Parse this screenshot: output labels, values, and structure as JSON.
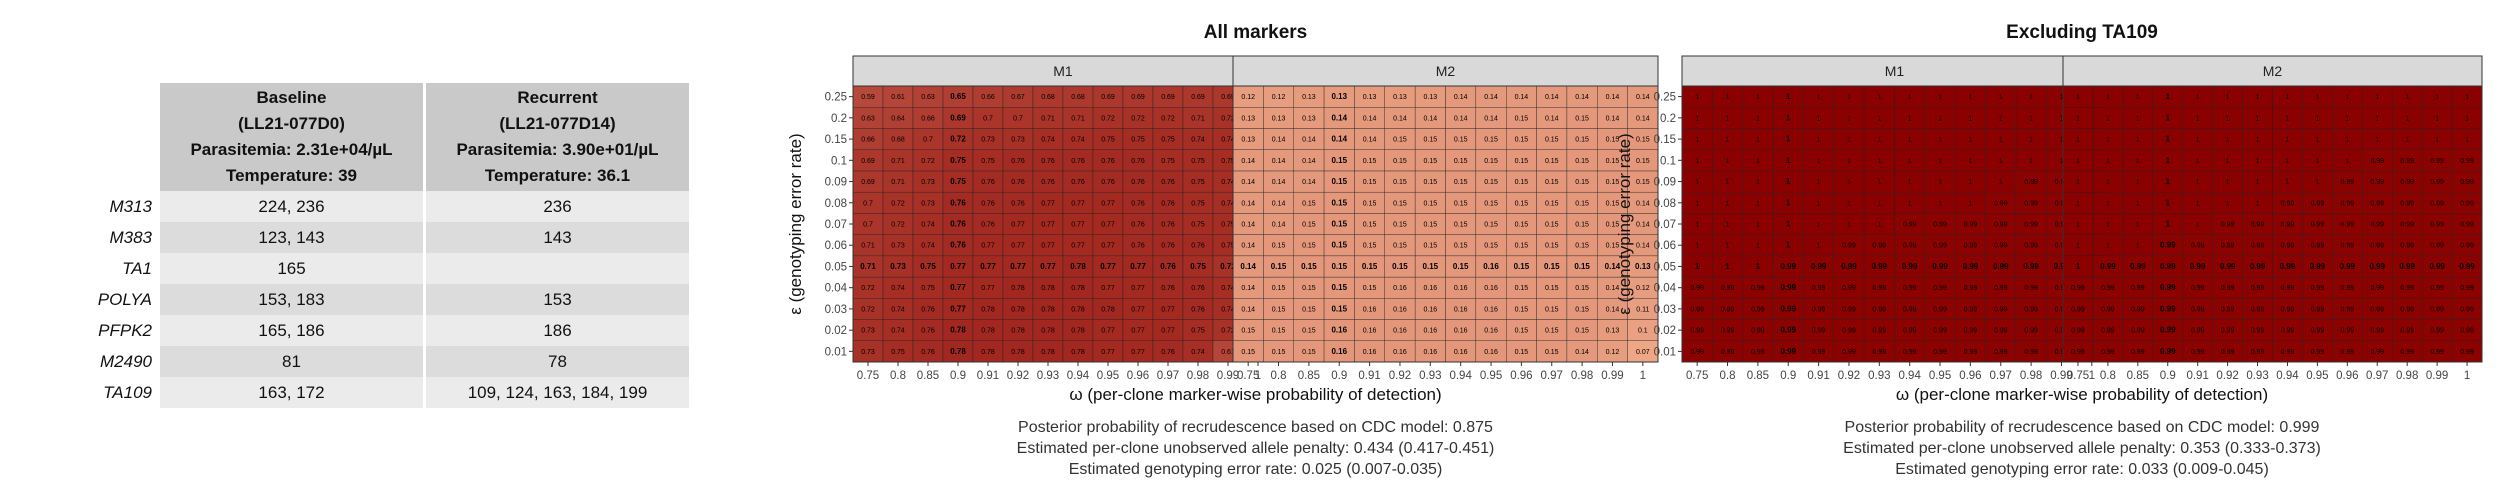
{
  "markers_table": {
    "headers": [
      [
        "Baseline",
        "(LL21-077D0)",
        "Parasitemia: 2.31e+04/µL",
        "Temperature: 39"
      ],
      [
        "Recurrent",
        "(LL21-077D14)",
        "Parasitemia: 3.90e+01/µL",
        "Temperature: 36.1"
      ]
    ],
    "rows": [
      {
        "marker": "M313",
        "baseline": "224, 236",
        "recurrent": "236"
      },
      {
        "marker": "M383",
        "baseline": "123, 143",
        "recurrent": "143"
      },
      {
        "marker": "TA1",
        "baseline": "165",
        "recurrent": ""
      },
      {
        "marker": "POLYA",
        "baseline": "153, 183",
        "recurrent": "153"
      },
      {
        "marker": "PFPK2",
        "baseline": "165, 186",
        "recurrent": "186"
      },
      {
        "marker": "M2490",
        "baseline": "81",
        "recurrent": "78"
      },
      {
        "marker": "TA109",
        "baseline": "163, 172",
        "recurrent": "109, 124, 163, 184, 199"
      }
    ]
  },
  "chart_data": [
    {
      "type": "heatmap",
      "title": "All markers",
      "xlabel": "ω (per-clone marker-wise probability of detection)",
      "ylabel": "ε (genotyping error rate)",
      "x": [
        "0.75",
        "0.8",
        "0.85",
        "0.9",
        "0.91",
        "0.92",
        "0.93",
        "0.94",
        "0.95",
        "0.96",
        "0.97",
        "0.98",
        "0.99",
        "1"
      ],
      "y": [
        "0.01",
        "0.02",
        "0.03",
        "0.04",
        "0.05",
        "0.06",
        "0.07",
        "0.08",
        "0.09",
        "0.1",
        "0.15",
        "0.2",
        "0.25"
      ],
      "bold_x": "0.9",
      "bold_y": "0.05",
      "color_low": "#f4b290",
      "color_high": "#8b0000",
      "panels": [
        {
          "name": "M1",
          "values": [
            [
              0.73,
              0.75,
              0.76,
              0.78,
              0.78,
              0.78,
              0.78,
              0.78,
              0.77,
              0.77,
              0.76,
              0.74,
              0.61,
              0.34
            ],
            [
              0.73,
              0.74,
              0.76,
              0.78,
              0.78,
              0.78,
              0.78,
              0.78,
              0.77,
              0.77,
              0.77,
              0.75,
              0.72,
              0.65
            ],
            [
              0.72,
              0.74,
              0.76,
              0.77,
              0.78,
              0.78,
              0.78,
              0.78,
              0.78,
              0.77,
              0.77,
              0.76,
              0.74,
              0.7
            ],
            [
              0.72,
              0.74,
              0.75,
              0.77,
              0.77,
              0.78,
              0.78,
              0.78,
              0.77,
              0.77,
              0.76,
              0.76,
              0.74,
              0.71
            ],
            [
              0.71,
              0.73,
              0.75,
              0.77,
              0.77,
              0.77,
              0.77,
              0.78,
              0.77,
              0.77,
              0.76,
              0.75,
              0.72,
              0.66
            ],
            [
              0.71,
              0.73,
              0.74,
              0.76,
              0.77,
              0.77,
              0.77,
              0.77,
              0.77,
              0.76,
              0.76,
              0.76,
              0.75,
              0.73
            ],
            [
              0.7,
              0.72,
              0.74,
              0.76,
              0.76,
              0.77,
              0.77,
              0.77,
              0.77,
              0.76,
              0.76,
              0.75,
              0.75,
              0.73
            ],
            [
              0.7,
              0.72,
              0.73,
              0.76,
              0.76,
              0.76,
              0.77,
              0.77,
              0.77,
              0.76,
              0.76,
              0.75,
              0.74,
              0.71
            ],
            [
              0.69,
              0.71,
              0.73,
              0.75,
              0.76,
              0.76,
              0.76,
              0.76,
              0.76,
              0.76,
              0.76,
              0.75,
              0.74,
              0.73
            ],
            [
              0.69,
              0.71,
              0.72,
              0.75,
              0.75,
              0.76,
              0.76,
              0.76,
              0.76,
              0.76,
              0.75,
              0.75,
              0.75,
              0.73
            ],
            [
              0.66,
              0.68,
              0.7,
              0.72,
              0.73,
              0.73,
              0.74,
              0.74,
              0.75,
              0.75,
              0.75,
              0.74,
              0.74,
              0.73
            ],
            [
              0.63,
              0.64,
              0.66,
              0.69,
              0.7,
              0.7,
              0.71,
              0.71,
              0.72,
              0.72,
              0.72,
              0.71,
              0.72,
              0.72
            ],
            [
              0.59,
              0.61,
              0.63,
              0.65,
              0.66,
              0.67,
              0.68,
              0.68,
              0.69,
              0.69,
              0.69,
              0.69,
              0.69,
              0.69
            ]
          ]
        },
        {
          "name": "M2",
          "values": [
            [
              0.15,
              0.15,
              0.15,
              0.16,
              0.16,
              0.16,
              0.16,
              0.16,
              0.16,
              0.15,
              0.15,
              0.14,
              0.12,
              0.07
            ],
            [
              0.15,
              0.15,
              0.15,
              0.16,
              0.16,
              0.16,
              0.16,
              0.16,
              0.16,
              0.15,
              0.15,
              0.15,
              0.13,
              0.1
            ],
            [
              0.14,
              0.15,
              0.15,
              0.15,
              0.16,
              0.16,
              0.16,
              0.16,
              0.16,
              0.15,
              0.15,
              0.15,
              0.14,
              0.11
            ],
            [
              0.14,
              0.15,
              0.15,
              0.15,
              0.15,
              0.16,
              0.16,
              0.16,
              0.16,
              0.15,
              0.15,
              0.15,
              0.14,
              0.12
            ],
            [
              0.14,
              0.15,
              0.15,
              0.15,
              0.15,
              0.15,
              0.15,
              0.15,
              0.16,
              0.15,
              0.15,
              0.15,
              0.14,
              0.13
            ],
            [
              0.14,
              0.15,
              0.15,
              0.15,
              0.15,
              0.15,
              0.15,
              0.15,
              0.15,
              0.15,
              0.15,
              0.15,
              0.15,
              0.14
            ],
            [
              0.14,
              0.14,
              0.15,
              0.15,
              0.15,
              0.15,
              0.15,
              0.15,
              0.15,
              0.15,
              0.15,
              0.15,
              0.15,
              0.14
            ],
            [
              0.14,
              0.14,
              0.15,
              0.15,
              0.15,
              0.15,
              0.15,
              0.15,
              0.15,
              0.15,
              0.15,
              0.15,
              0.15,
              0.14
            ],
            [
              0.14,
              0.14,
              0.14,
              0.15,
              0.15,
              0.15,
              0.15,
              0.15,
              0.15,
              0.15,
              0.15,
              0.15,
              0.15,
              0.15
            ],
            [
              0.14,
              0.14,
              0.14,
              0.15,
              0.15,
              0.15,
              0.15,
              0.15,
              0.15,
              0.15,
              0.15,
              0.15,
              0.15,
              0.15
            ],
            [
              0.13,
              0.14,
              0.14,
              0.14,
              0.14,
              0.15,
              0.15,
              0.15,
              0.15,
              0.15,
              0.15,
              0.15,
              0.15,
              0.15
            ],
            [
              0.13,
              0.13,
              0.13,
              0.14,
              0.14,
              0.14,
              0.14,
              0.14,
              0.14,
              0.15,
              0.14,
              0.15,
              0.14,
              0.14
            ],
            [
              0.12,
              0.12,
              0.13,
              0.13,
              0.13,
              0.13,
              0.13,
              0.14,
              0.14,
              0.14,
              0.14,
              0.14,
              0.14,
              0.14
            ]
          ]
        }
      ],
      "captions": [
        "Posterior probability of recrudescence based on CDC model: 0.875",
        "Estimated per-clone unobserved allele penalty: 0.434 (0.417-0.451)",
        "Estimated genotyping error rate: 0.025 (0.007-0.035)"
      ]
    },
    {
      "type": "heatmap",
      "title": "Excluding TA109",
      "xlabel": "ω (per-clone marker-wise probability of detection)",
      "ylabel": "ε (genotyping error rate)",
      "x": [
        "0.75",
        "0.8",
        "0.85",
        "0.9",
        "0.91",
        "0.92",
        "0.93",
        "0.94",
        "0.95",
        "0.96",
        "0.97",
        "0.98",
        "0.99",
        "1"
      ],
      "y": [
        "0.01",
        "0.02",
        "0.03",
        "0.04",
        "0.05",
        "0.06",
        "0.07",
        "0.08",
        "0.09",
        "0.1",
        "0.15",
        "0.2",
        "0.25"
      ],
      "bold_x": "0.9",
      "bold_y": "0.05",
      "color_low": "#f4b290",
      "color_high": "#8b0000",
      "panels": [
        {
          "name": "M1",
          "values": [
            [
              0.99,
              0.99,
              0.99,
              0.99,
              0.99,
              0.99,
              0.99,
              0.99,
              0.99,
              0.99,
              0.99,
              0.99,
              0.99,
              0.99
            ],
            [
              0.99,
              0.99,
              0.99,
              0.99,
              0.99,
              0.99,
              0.99,
              0.99,
              0.99,
              0.99,
              0.99,
              0.99,
              0.99,
              0.99
            ],
            [
              0.99,
              0.99,
              0.99,
              0.99,
              0.99,
              0.99,
              0.99,
              0.99,
              0.99,
              0.99,
              0.99,
              0.99,
              0.99,
              0.99
            ],
            [
              0.99,
              0.99,
              0.99,
              0.99,
              0.99,
              0.99,
              0.99,
              0.99,
              0.99,
              0.99,
              0.99,
              0.99,
              0.99,
              0.99
            ],
            [
              1,
              1,
              1,
              0.99,
              0.99,
              0.99,
              0.99,
              0.99,
              0.99,
              0.99,
              0.99,
              0.99,
              0.99,
              0.99
            ],
            [
              1,
              1,
              1,
              1,
              1,
              0.99,
              0.99,
              0.99,
              0.99,
              0.99,
              0.99,
              0.99,
              0.99,
              0.99
            ],
            [
              1,
              1,
              1,
              1,
              1,
              1,
              1,
              0.99,
              0.99,
              0.99,
              0.99,
              0.99,
              0.99,
              0.99
            ],
            [
              1,
              1,
              1,
              1,
              1,
              1,
              1,
              1,
              1,
              1,
              0.99,
              0.99,
              0.99,
              0.99
            ],
            [
              1,
              1,
              1,
              1,
              1,
              1,
              1,
              1,
              1,
              1,
              1,
              0.99,
              0.99,
              0.99
            ],
            [
              1,
              1,
              1,
              1,
              1,
              1,
              1,
              1,
              1,
              1,
              1,
              1,
              1,
              1
            ],
            [
              1,
              1,
              1,
              1,
              1,
              1,
              1,
              1,
              1,
              1,
              1,
              1,
              1,
              1
            ],
            [
              1,
              1,
              1,
              1,
              1,
              1,
              1,
              1,
              1,
              1,
              1,
              1,
              1,
              1
            ],
            [
              1,
              1,
              1,
              1,
              1,
              1,
              1,
              1,
              1,
              1,
              1,
              1,
              1,
              1
            ]
          ]
        },
        {
          "name": "M2",
          "values": [
            [
              0.99,
              0.99,
              0.99,
              0.99,
              0.99,
              0.99,
              0.99,
              0.99,
              0.99,
              0.99,
              0.99,
              0.99,
              0.99,
              0.99
            ],
            [
              0.99,
              0.99,
              0.99,
              0.99,
              0.99,
              0.99,
              0.99,
              0.99,
              0.99,
              0.99,
              0.99,
              0.99,
              0.99,
              0.99
            ],
            [
              0.99,
              0.99,
              0.99,
              0.99,
              0.99,
              0.99,
              0.99,
              0.99,
              0.99,
              0.99,
              0.99,
              0.99,
              0.99,
              0.99
            ],
            [
              0.99,
              0.99,
              0.99,
              0.99,
              0.99,
              0.99,
              0.99,
              0.99,
              0.99,
              0.99,
              0.99,
              0.99,
              0.99,
              0.99
            ],
            [
              1,
              0.99,
              0.99,
              0.99,
              0.99,
              0.99,
              0.99,
              0.99,
              0.99,
              0.99,
              0.99,
              0.99,
              0.99,
              0.99
            ],
            [
              1,
              1,
              1,
              0.99,
              0.99,
              0.99,
              0.99,
              0.99,
              0.99,
              0.99,
              0.99,
              0.99,
              0.99,
              0.99
            ],
            [
              1,
              1,
              1,
              1,
              1,
              0.99,
              0.99,
              0.99,
              0.99,
              0.99,
              0.99,
              0.99,
              0.99,
              0.99
            ],
            [
              1,
              1,
              1,
              1,
              1,
              1,
              1,
              0.99,
              0.99,
              0.99,
              0.99,
              0.99,
              0.99,
              0.99
            ],
            [
              1,
              1,
              1,
              1,
              1,
              1,
              1,
              1,
              1,
              0.99,
              0.99,
              0.99,
              0.99,
              0.99
            ],
            [
              1,
              1,
              1,
              1,
              1,
              1,
              1,
              1,
              1,
              1,
              0.99,
              0.99,
              0.99,
              0.99
            ],
            [
              1,
              1,
              1,
              1,
              1,
              1,
              1,
              1,
              1,
              1,
              1,
              1,
              1,
              1
            ],
            [
              1,
              1,
              1,
              1,
              1,
              1,
              1,
              1,
              1,
              1,
              1,
              1,
              1,
              1
            ],
            [
              1,
              1,
              1,
              1,
              1,
              1,
              1,
              1,
              1,
              1,
              1,
              1,
              1,
              1
            ]
          ]
        }
      ],
      "captions": [
        "Posterior probability of recrudescence based on CDC model: 0.999",
        "Estimated per-clone unobserved allele penalty: 0.353 (0.333-0.373)",
        "Estimated genotyping error rate: 0.033 (0.009-0.045)"
      ]
    }
  ]
}
